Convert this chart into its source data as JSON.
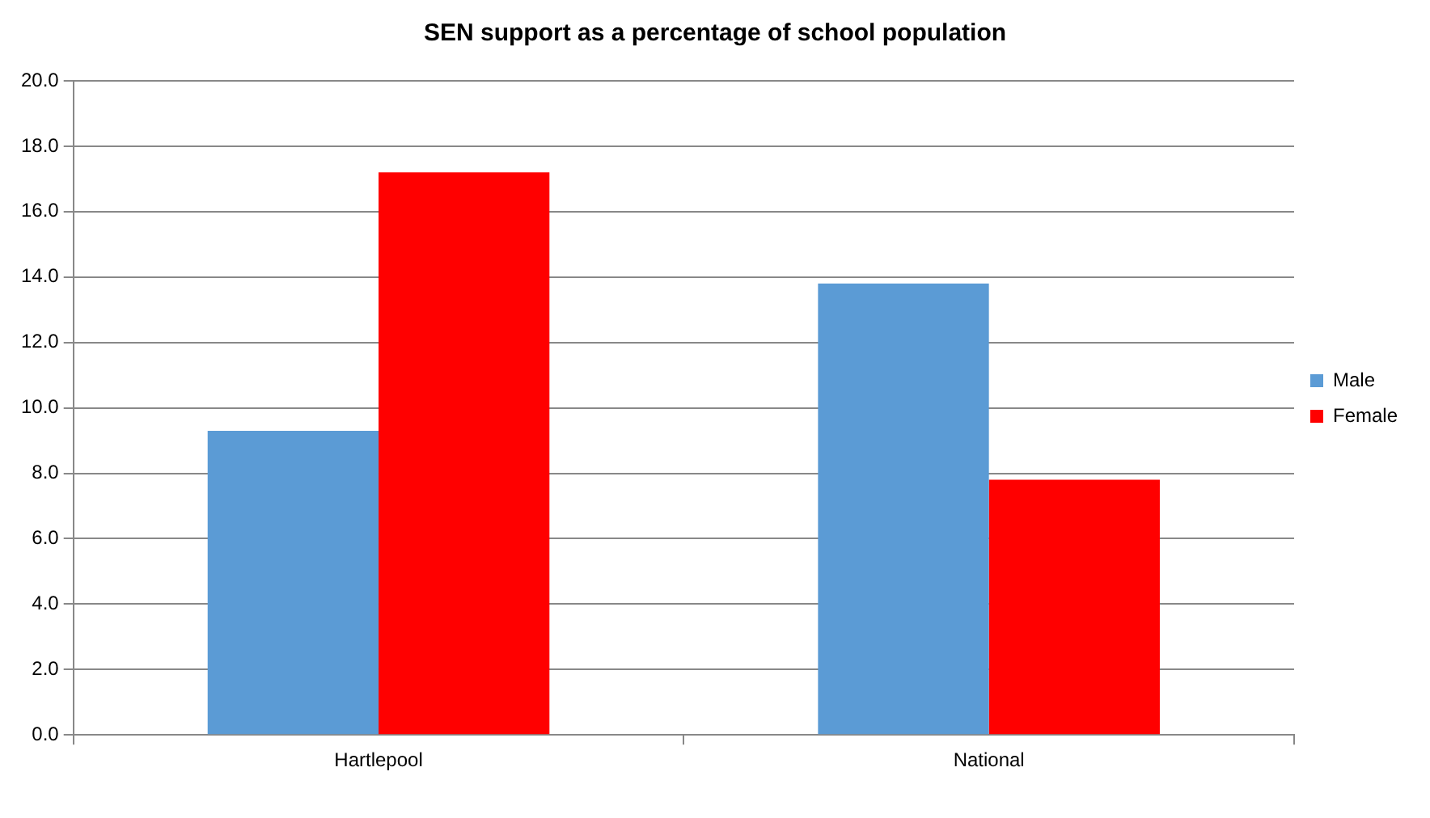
{
  "chart_data": {
    "type": "bar",
    "title": "SEN support as a percentage of school population",
    "categories": [
      "Hartlepool",
      "National"
    ],
    "series": [
      {
        "name": "Male",
        "color": "#5b9bd5",
        "values": [
          9.3,
          13.8
        ]
      },
      {
        "name": "Female",
        "color": "#ff0000",
        "values": [
          17.2,
          7.8
        ]
      }
    ],
    "ylim": [
      0,
      20
    ],
    "yticks": [
      {
        "value": 0,
        "label": "0.0"
      },
      {
        "value": 2,
        "label": "2.0"
      },
      {
        "value": 4,
        "label": "4.0"
      },
      {
        "value": 6,
        "label": "6.0"
      },
      {
        "value": 8,
        "label": "8.0"
      },
      {
        "value": 10,
        "label": "10.0"
      },
      {
        "value": 12,
        "label": "12.0"
      },
      {
        "value": 14,
        "label": "14.0"
      },
      {
        "value": 16,
        "label": "16.0"
      },
      {
        "value": 18,
        "label": "18.0"
      },
      {
        "value": 20,
        "label": "20.0"
      }
    ],
    "grid": "y",
    "legend": "right"
  }
}
